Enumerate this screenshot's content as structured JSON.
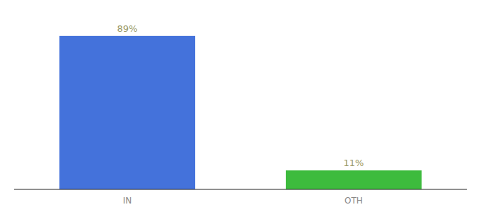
{
  "chart_data": {
    "type": "bar",
    "categories": [
      "IN",
      "OTH"
    ],
    "values": [
      89,
      11
    ],
    "value_labels": [
      "89%",
      "11%"
    ],
    "colors": [
      "#4472db",
      "#3dbb3d"
    ],
    "ylim": [
      0,
      100
    ],
    "grid": false,
    "data_labels": true,
    "tick_labels": "x"
  }
}
